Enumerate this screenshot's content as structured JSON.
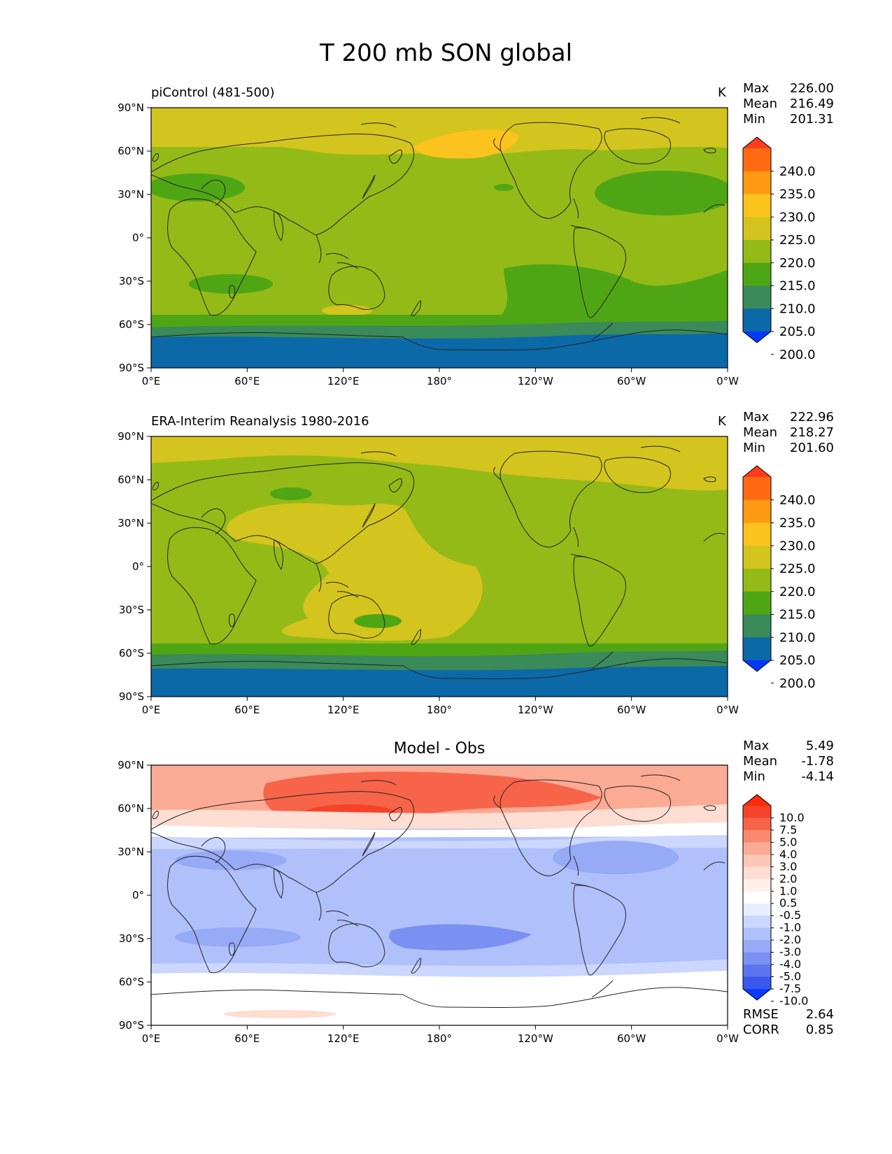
{
  "figure": {
    "title": "T 200 mb SON global"
  },
  "axes": {
    "lat_ticks": [
      "90°N",
      "60°N",
      "30°N",
      "0°",
      "30°S",
      "60°S",
      "90°S"
    ],
    "lon_ticks": [
      "0°E",
      "60°E",
      "120°E",
      "180°",
      "120°W",
      "60°W",
      "0°W"
    ]
  },
  "panels": [
    {
      "title": "piControl (481-500)",
      "units": "K",
      "stats": [
        {
          "label": "Max",
          "value": "226.00"
        },
        {
          "label": "Mean",
          "value": "216.49"
        },
        {
          "label": "Min",
          "value": "201.31"
        }
      ],
      "colorbar": {
        "labels": [
          "240.0",
          "235.0",
          "230.0",
          "225.0",
          "220.0",
          "215.0",
          "210.0",
          "205.0",
          "200.0"
        ],
        "colors": [
          "#ff3b1c",
          "#ff6a12",
          "#ff9a12",
          "#fcc21e",
          "#d4c41e",
          "#94ba18",
          "#4fa614",
          "#3a8a5a",
          "#0b69a8",
          "#0538ff"
        ]
      }
    },
    {
      "title": "ERA-Interim Reanalysis 1980-2016",
      "units": "K",
      "stats": [
        {
          "label": "Max",
          "value": "222.96"
        },
        {
          "label": "Mean",
          "value": "218.27"
        },
        {
          "label": "Min",
          "value": "201.60"
        }
      ],
      "colorbar": {
        "labels": [
          "240.0",
          "235.0",
          "230.0",
          "225.0",
          "220.0",
          "215.0",
          "210.0",
          "205.0",
          "200.0"
        ],
        "colors": [
          "#ff3b1c",
          "#ff6a12",
          "#ff9a12",
          "#fcc21e",
          "#d4c41e",
          "#94ba18",
          "#4fa614",
          "#3a8a5a",
          "#0b69a8",
          "#0538ff"
        ]
      }
    },
    {
      "title": "Model - Obs",
      "stats": [
        {
          "label": "Max",
          "value": "5.49"
        },
        {
          "label": "Mean",
          "value": "-1.78"
        },
        {
          "label": "Min",
          "value": "-4.14"
        }
      ],
      "colorbar": {
        "labels": [
          "10.0",
          "7.5",
          "5.0",
          "4.0",
          "3.0",
          "2.0",
          "1.0",
          "0.5",
          "-0.5",
          "-1.0",
          "-2.0",
          "-3.0",
          "-4.0",
          "-5.0",
          "-7.5",
          "-10.0"
        ],
        "colors": [
          "#ff2a0a",
          "#f5432a",
          "#f7644a",
          "#f98a70",
          "#fbaa94",
          "#fdc6b6",
          "#feddd2",
          "#ffeeea",
          "#ffffff",
          "#e8eeff",
          "#ccd7ff",
          "#b0c0fb",
          "#96aaf6",
          "#7a90f2",
          "#5c74ee",
          "#3a58ee",
          "#0a3aff"
        ]
      },
      "metrics": [
        {
          "label": "RMSE",
          "value": "2.64"
        },
        {
          "label": "CORR",
          "value": "0.85"
        }
      ]
    }
  ]
}
